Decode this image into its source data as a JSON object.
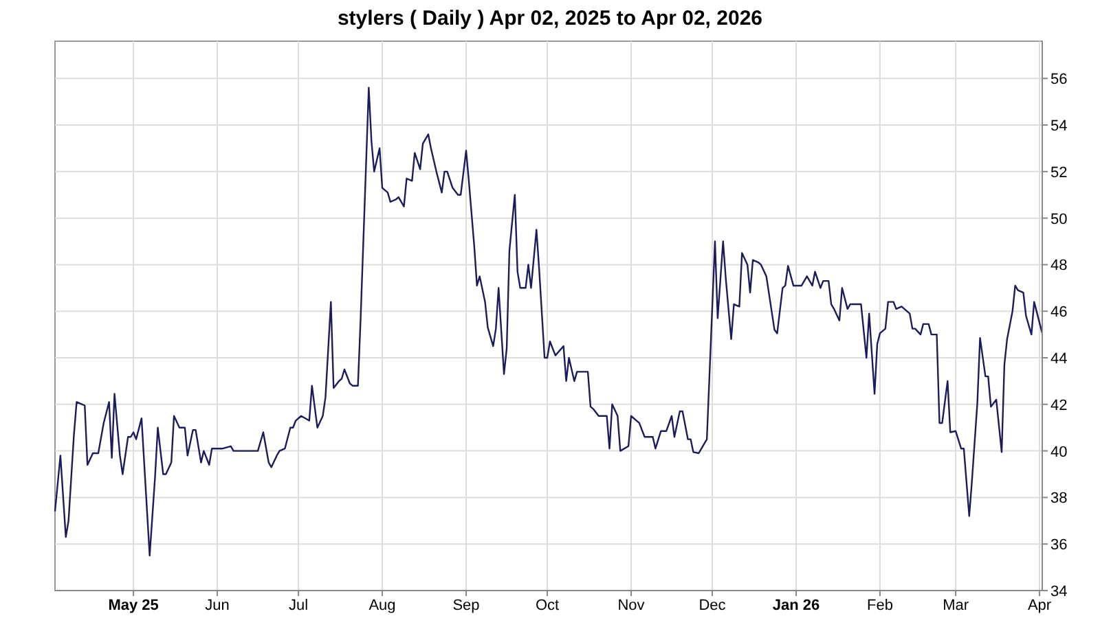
{
  "chart_data": {
    "type": "line",
    "title": "stylers ( Daily ) Apr 02, 2025 to Apr 02, 2026",
    "x": [
      "2025-04-02",
      "2025-04-04",
      "2025-04-06",
      "2025-04-07",
      "2025-04-09",
      "2025-04-10",
      "2025-04-13",
      "2025-04-14",
      "2025-04-16",
      "2025-04-18",
      "2025-04-20",
      "2025-04-22",
      "2025-04-23",
      "2025-04-24",
      "2025-04-26",
      "2025-04-27",
      "2025-04-29",
      "2025-04-30",
      "2025-05-01",
      "2025-05-02",
      "2025-05-04",
      "2025-05-07",
      "2025-05-09",
      "2025-05-10",
      "2025-05-12",
      "2025-05-13",
      "2025-05-15",
      "2025-05-16",
      "2025-05-18",
      "2025-05-20",
      "2025-05-21",
      "2025-05-23",
      "2025-05-24",
      "2025-05-26",
      "2025-05-27",
      "2025-05-29",
      "2025-05-30",
      "2025-06-03",
      "2025-06-06",
      "2025-06-07",
      "2025-06-16",
      "2025-06-18",
      "2025-06-20",
      "2025-06-21",
      "2025-06-23",
      "2025-06-24",
      "2025-06-26",
      "2025-06-28",
      "2025-06-29",
      "2025-06-30",
      "2025-07-02",
      "2025-07-05",
      "2025-07-06",
      "2025-07-08",
      "2025-07-10",
      "2025-07-11",
      "2025-07-13",
      "2025-07-14",
      "2025-07-16",
      "2025-07-17",
      "2025-07-18",
      "2025-07-20",
      "2025-07-21",
      "2025-07-23",
      "2025-07-24",
      "2025-07-27",
      "2025-07-28",
      "2025-07-29",
      "2025-07-31",
      "2025-08-01",
      "2025-08-03",
      "2025-08-04",
      "2025-08-06",
      "2025-08-07",
      "2025-08-09",
      "2025-08-10",
      "2025-08-12",
      "2025-08-13",
      "2025-08-15",
      "2025-08-16",
      "2025-08-18",
      "2025-08-19",
      "2025-08-21",
      "2025-08-23",
      "2025-08-24",
      "2025-08-25",
      "2025-08-27",
      "2025-08-29",
      "2025-08-30",
      "2025-09-01",
      "2025-09-02",
      "2025-09-04",
      "2025-09-05",
      "2025-09-06",
      "2025-09-08",
      "2025-09-09",
      "2025-09-11",
      "2025-09-12",
      "2025-09-13",
      "2025-09-15",
      "2025-09-16",
      "2025-09-17",
      "2025-09-19",
      "2025-09-20",
      "2025-09-21",
      "2025-09-23",
      "2025-09-24",
      "2025-09-25",
      "2025-09-27",
      "2025-09-28",
      "2025-09-30",
      "2025-10-01",
      "2025-10-02",
      "2025-10-04",
      "2025-10-07",
      "2025-10-08",
      "2025-10-09",
      "2025-10-11",
      "2025-10-12",
      "2025-10-14",
      "2025-10-16",
      "2025-10-17",
      "2025-10-18",
      "2025-10-20",
      "2025-10-23",
      "2025-10-24",
      "2025-10-25",
      "2025-10-27",
      "2025-10-28",
      "2025-10-31",
      "2025-11-01",
      "2025-11-03",
      "2025-11-04",
      "2025-11-06",
      "2025-11-09",
      "2025-11-10",
      "2025-11-12",
      "2025-11-14",
      "2025-11-16",
      "2025-11-17",
      "2025-11-19",
      "2025-11-20",
      "2025-11-22",
      "2025-11-23",
      "2025-11-24",
      "2025-11-26",
      "2025-11-29",
      "2025-12-02",
      "2025-12-03",
      "2025-12-05",
      "2025-12-06",
      "2025-12-08",
      "2025-12-09",
      "2025-12-11",
      "2025-12-12",
      "2025-12-14",
      "2025-12-15",
      "2025-12-16",
      "2025-12-18",
      "2025-12-19",
      "2025-12-21",
      "2025-12-24",
      "2025-12-25",
      "2025-12-27",
      "2025-12-28",
      "2025-12-29",
      "2025-12-31",
      "2026-01-03",
      "2026-01-05",
      "2026-01-07",
      "2026-01-08",
      "2026-01-10",
      "2026-01-11",
      "2026-01-13",
      "2026-01-14",
      "2026-01-15",
      "2026-01-17",
      "2026-01-18",
      "2026-01-20",
      "2026-01-21",
      "2026-01-25",
      "2026-01-27",
      "2026-01-28",
      "2026-01-30",
      "2026-01-31",
      "2026-02-01",
      "2026-02-03",
      "2026-02-04",
      "2026-02-06",
      "2026-02-07",
      "2026-02-09",
      "2026-02-12",
      "2026-02-13",
      "2026-02-14",
      "2026-02-16",
      "2026-02-17",
      "2026-02-19",
      "2026-02-20",
      "2026-02-22",
      "2026-02-23",
      "2026-02-24",
      "2026-02-26",
      "2026-02-27",
      "2026-03-01",
      "2026-03-03",
      "2026-03-04",
      "2026-03-06",
      "2026-03-07",
      "2026-03-09",
      "2026-03-10",
      "2026-03-12",
      "2026-03-13",
      "2026-03-14",
      "2026-03-16",
      "2026-03-18",
      "2026-03-19",
      "2026-03-20",
      "2026-03-22",
      "2026-03-23",
      "2026-03-24",
      "2026-03-26",
      "2026-03-27",
      "2026-03-29",
      "2026-03-30",
      "2026-04-02"
    ],
    "series": [
      {
        "color": "#1c1c5c",
        "values": [
          37.4,
          39.8,
          36.3,
          37.0,
          40.7,
          42.1,
          41.95,
          39.4,
          39.9,
          39.9,
          41.2,
          42.1,
          39.7,
          42.45,
          39.8,
          39.0,
          40.6,
          40.6,
          40.8,
          40.5,
          41.4,
          35.5,
          38.9,
          41.0,
          39.0,
          39.0,
          39.5,
          41.5,
          41.0,
          41.0,
          39.8,
          40.9,
          40.9,
          39.5,
          40.0,
          39.4,
          40.1,
          40.1,
          40.2,
          40.0,
          40.0,
          40.8,
          39.5,
          39.3,
          39.8,
          40.0,
          40.1,
          41.0,
          41.0,
          41.3,
          41.5,
          41.3,
          42.8,
          41.0,
          41.5,
          42.3,
          46.4,
          42.7,
          43.0,
          43.1,
          43.5,
          42.9,
          42.8,
          42.8,
          45.7,
          55.6,
          53.3,
          52.0,
          53.0,
          51.3,
          51.1,
          50.7,
          50.8,
          50.9,
          50.5,
          51.7,
          51.6,
          52.8,
          52.1,
          53.2,
          53.6,
          53.0,
          52.0,
          51.1,
          52.0,
          52.0,
          51.3,
          51.0,
          51.0,
          52.9,
          51.6,
          48.8,
          47.1,
          47.5,
          46.4,
          45.3,
          44.5,
          45.25,
          47.0,
          43.3,
          44.4,
          48.6,
          51.0,
          47.7,
          47.0,
          47.0,
          48.0,
          47.0,
          49.5,
          47.8,
          44.0,
          44.0,
          44.7,
          44.1,
          44.5,
          43.0,
          44.0,
          43.0,
          43.4,
          43.4,
          43.4,
          41.9,
          41.8,
          41.5,
          41.5,
          40.1,
          42.0,
          41.5,
          40.0,
          40.2,
          41.5,
          41.3,
          41.2,
          40.6,
          40.6,
          40.1,
          40.85,
          40.85,
          41.5,
          40.6,
          41.7,
          41.7,
          40.5,
          40.5,
          39.95,
          39.9,
          40.5,
          49.0,
          45.7,
          49.0,
          47.4,
          44.8,
          46.3,
          46.2,
          48.5,
          48.0,
          46.8,
          48.2,
          48.1,
          48.0,
          47.5,
          45.2,
          45.05,
          47.0,
          47.1,
          47.95,
          47.1,
          47.1,
          47.5,
          47.1,
          47.7,
          47.0,
          47.3,
          47.3,
          46.3,
          46.1,
          45.6,
          47.0,
          46.1,
          46.3,
          46.3,
          44.0,
          45.9,
          42.45,
          44.6,
          45.05,
          45.25,
          46.4,
          46.4,
          46.1,
          46.2,
          45.9,
          45.25,
          45.25,
          45.0,
          45.45,
          45.45,
          45.0,
          45.0,
          41.2,
          41.2,
          43.0,
          40.8,
          40.85,
          40.1,
          40.1,
          37.2,
          38.7,
          42.05,
          44.85,
          43.2,
          43.2,
          41.9,
          42.2,
          39.95,
          43.7,
          44.8,
          46.0,
          47.1,
          46.9,
          46.8,
          45.8,
          45.0,
          46.4,
          45.05
        ]
      }
    ],
    "xlim": [
      "2025-04-02",
      "2026-04-02"
    ],
    "xticks": [
      {
        "value": "2025-05-01",
        "label": "May 25"
      },
      {
        "value": "2025-06-01",
        "label": "Jun"
      },
      {
        "value": "2025-07-01",
        "label": "Jul"
      },
      {
        "value": "2025-08-01",
        "label": "Aug"
      },
      {
        "value": "2025-09-01",
        "label": "Sep"
      },
      {
        "value": "2025-10-01",
        "label": "Oct"
      },
      {
        "value": "2025-11-01",
        "label": "Nov"
      },
      {
        "value": "2025-12-01",
        "label": "Dec"
      },
      {
        "value": "2026-01-01",
        "label": "Jan 26"
      },
      {
        "value": "2026-02-01",
        "label": "Feb"
      },
      {
        "value": "2026-03-01",
        "label": "Mar"
      },
      {
        "value": "2026-04-01",
        "label": "Apr"
      }
    ],
    "ylim": [
      34,
      57.6
    ],
    "yticks": [
      34,
      36,
      38,
      40,
      42,
      44,
      46,
      48,
      50,
      52,
      54,
      56
    ],
    "grid": true,
    "marker": "none",
    "line_style": "solid"
  }
}
